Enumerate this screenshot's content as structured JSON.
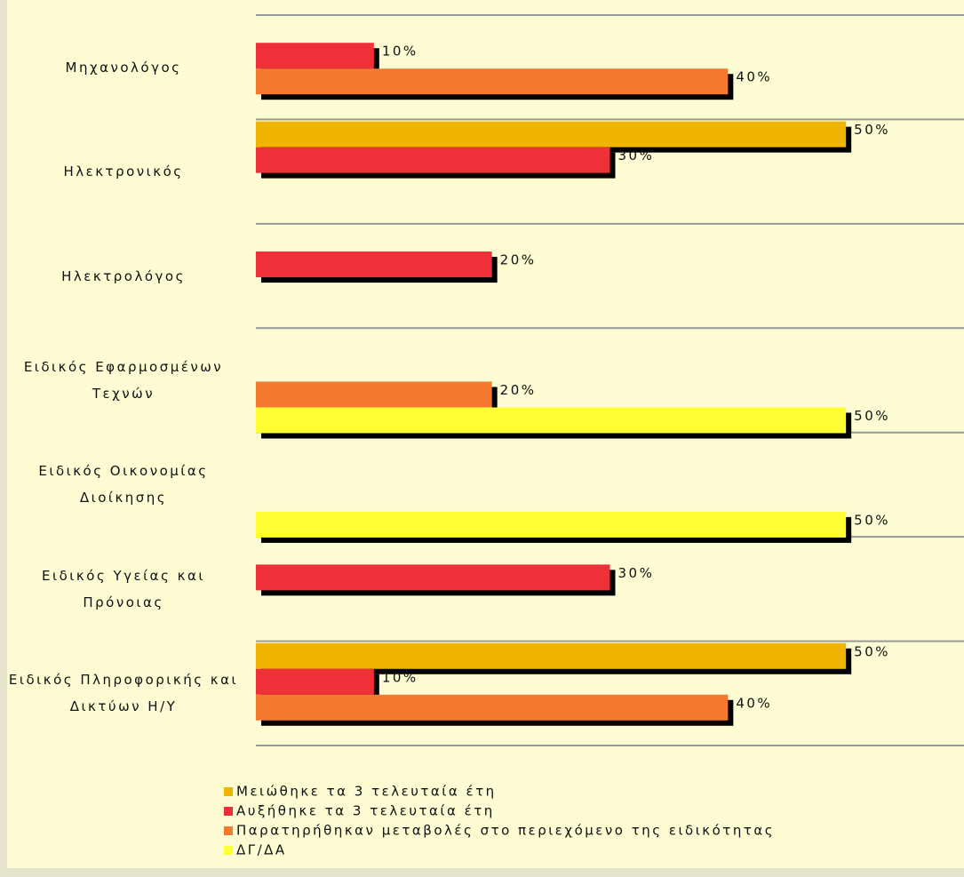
{
  "chart_data": {
    "type": "bar",
    "orientation": "horizontal",
    "categories": [
      "Μηχανολόγος",
      "Ηλεκτρονικός",
      "Ηλεκτρολόγος",
      "Ειδικός Εφαρμοσμένων Τεχνών",
      "Ειδικός Οικονομίας Διοίκησης",
      "Ειδικός Υγείας και Πρόνοιας",
      "Ειδικός Πληροφορικής και Δικτύων Η/Υ"
    ],
    "series": [
      {
        "name": "Μειώθηκε τα 3 τελευταία έτη",
        "color": "#eeb400",
        "values": [
          null,
          50,
          null,
          null,
          null,
          null,
          50
        ],
        "value_labels": [
          null,
          "50%",
          null,
          null,
          null,
          null,
          "50%"
        ]
      },
      {
        "name": "Αυξήθηκε τα 3 τελευταία έτη",
        "color": "#f03038",
        "values": [
          10,
          30,
          20,
          null,
          null,
          30,
          10
        ],
        "value_labels": [
          "10%",
          "30%",
          "20%",
          null,
          null,
          "30%",
          "10%"
        ]
      },
      {
        "name": "Παρατηρήθηκαν μεταβολές στο περιεχόμενο της ειδικότητας",
        "color": "#f57a30",
        "values": [
          40,
          null,
          null,
          20,
          null,
          null,
          40
        ],
        "value_labels": [
          "40%",
          null,
          null,
          "20%",
          null,
          null,
          "40%"
        ]
      },
      {
        "name": "ΔΓ/ΔΑ",
        "color": "#ffff33",
        "values": [
          null,
          null,
          null,
          50,
          50,
          null,
          null
        ],
        "value_labels": [
          null,
          null,
          null,
          "50%",
          "50%",
          null,
          null
        ]
      }
    ],
    "xlim": [
      0,
      60
    ],
    "legend": "bottom",
    "bar_shadow": true
  }
}
